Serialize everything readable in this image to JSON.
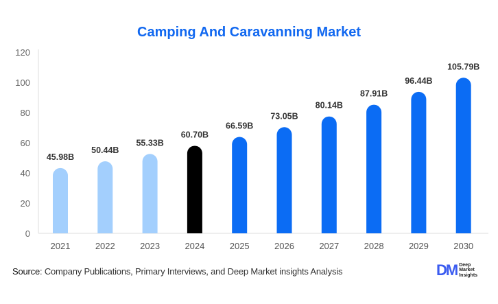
{
  "chart_data": {
    "type": "bar",
    "title": "Camping And Caravanning Market",
    "categories": [
      "2021",
      "2022",
      "2023",
      "2024",
      "2025",
      "2026",
      "2027",
      "2028",
      "2029",
      "2030"
    ],
    "values": [
      45.98,
      50.44,
      55.33,
      60.7,
      66.59,
      73.05,
      80.14,
      87.91,
      96.44,
      105.79
    ],
    "data_labels": [
      "45.98B",
      "50.44B",
      "55.33B",
      "60.70B",
      "66.59B",
      "73.05B",
      "80.14B",
      "87.91B",
      "96.44B",
      "105.79B"
    ],
    "ylim": [
      0,
      120
    ],
    "yticks": [
      0,
      20,
      40,
      60,
      80,
      100,
      120
    ],
    "grid": false,
    "colors": {
      "historical": "#a3cffd",
      "current": "#000000",
      "forecast": "#0b6cf4"
    },
    "bar_kinds": [
      "historical",
      "historical",
      "historical",
      "current",
      "forecast",
      "forecast",
      "forecast",
      "forecast",
      "forecast",
      "forecast"
    ]
  },
  "footer": {
    "source_label": "Source",
    "source_text": ": Company Publications, Primary Interviews, and Deep Market insights Analysis",
    "logo": {
      "mark": "DM",
      "line1": "Deep",
      "line2": "Market",
      "line3": "Insights"
    }
  }
}
